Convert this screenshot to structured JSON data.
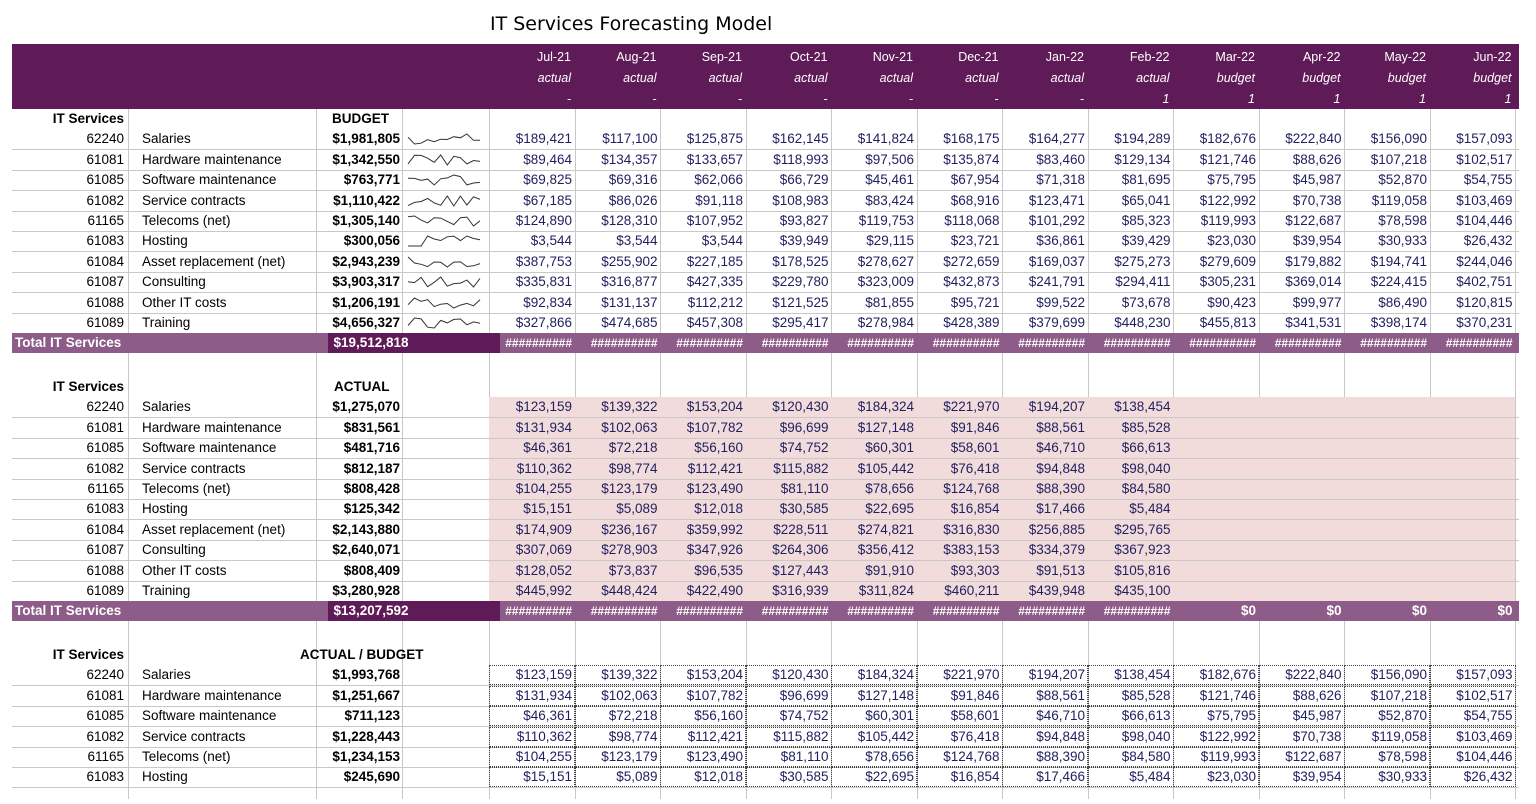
{
  "title": "IT Services Forecasting Model",
  "months": [
    "Jul-21",
    "Aug-21",
    "Sep-21",
    "Oct-21",
    "Nov-21",
    "Dec-21",
    "Jan-22",
    "Feb-22",
    "Mar-22",
    "Apr-22",
    "May-22",
    "Jun-22"
  ],
  "types": [
    "actual",
    "actual",
    "actual",
    "actual",
    "actual",
    "actual",
    "actual",
    "actual",
    "budget",
    "budget",
    "budget",
    "budget"
  ],
  "flags": [
    "-",
    "-",
    "-",
    "-",
    "-",
    "-",
    "-",
    "1",
    "1",
    "1",
    "1",
    "1"
  ],
  "hash": "##########",
  "section_label": "IT Services",
  "total_label": "Total IT Services",
  "budget": {
    "header": "BUDGET",
    "total": "$19,512,818",
    "rows": [
      {
        "code": "62240",
        "name": "Salaries",
        "total": "$1,981,805",
        "vals": [
          "$189,421",
          "$117,100",
          "$125,875",
          "$162,145",
          "$141,824",
          "$168,175",
          "$164,277",
          "$194,289",
          "$182,676",
          "$222,840",
          "$156,090",
          "$157,093"
        ]
      },
      {
        "code": "61081",
        "name": "Hardware maintenance",
        "total": "$1,342,550",
        "vals": [
          "$89,464",
          "$134,357",
          "$133,657",
          "$118,993",
          "$97,506",
          "$135,874",
          "$83,460",
          "$129,134",
          "$121,746",
          "$88,626",
          "$107,218",
          "$102,517"
        ]
      },
      {
        "code": "61085",
        "name": "Software maintenance",
        "total": "$763,771",
        "vals": [
          "$69,825",
          "$69,316",
          "$62,066",
          "$66,729",
          "$45,461",
          "$67,954",
          "$71,318",
          "$81,695",
          "$75,795",
          "$45,987",
          "$52,870",
          "$54,755"
        ]
      },
      {
        "code": "61082",
        "name": "Service contracts",
        "total": "$1,110,422",
        "vals": [
          "$67,185",
          "$86,026",
          "$91,118",
          "$108,983",
          "$83,424",
          "$68,916",
          "$123,471",
          "$65,041",
          "$122,992",
          "$70,738",
          "$119,058",
          "$103,469"
        ]
      },
      {
        "code": "61165",
        "name": "Telecoms (net)",
        "total": "$1,305,140",
        "vals": [
          "$124,890",
          "$128,310",
          "$107,952",
          "$93,827",
          "$119,753",
          "$118,068",
          "$101,292",
          "$85,323",
          "$119,993",
          "$122,687",
          "$78,598",
          "$104,446"
        ]
      },
      {
        "code": "61083",
        "name": "Hosting",
        "total": "$300,056",
        "vals": [
          "$3,544",
          "$3,544",
          "$3,544",
          "$39,949",
          "$29,115",
          "$23,721",
          "$36,861",
          "$39,429",
          "$23,030",
          "$39,954",
          "$30,933",
          "$26,432"
        ]
      },
      {
        "code": "61084",
        "name": "Asset replacement (net)",
        "total": "$2,943,239",
        "vals": [
          "$387,753",
          "$255,902",
          "$227,185",
          "$178,525",
          "$278,627",
          "$272,659",
          "$169,037",
          "$275,273",
          "$279,609",
          "$179,882",
          "$194,741",
          "$244,046"
        ]
      },
      {
        "code": "61087",
        "name": "Consulting",
        "total": "$3,903,317",
        "vals": [
          "$335,831",
          "$316,877",
          "$427,335",
          "$229,780",
          "$323,009",
          "$432,873",
          "$241,791",
          "$294,411",
          "$305,231",
          "$369,014",
          "$224,415",
          "$402,751"
        ]
      },
      {
        "code": "61088",
        "name": "Other IT costs",
        "total": "$1,206,191",
        "vals": [
          "$92,834",
          "$131,137",
          "$112,212",
          "$121,525",
          "$81,855",
          "$95,721",
          "$99,522",
          "$73,678",
          "$90,423",
          "$99,977",
          "$86,490",
          "$120,815"
        ]
      },
      {
        "code": "61089",
        "name": "Training",
        "total": "$4,656,327",
        "vals": [
          "$327,866",
          "$474,685",
          "$457,308",
          "$295,417",
          "$278,984",
          "$428,389",
          "$379,699",
          "$448,230",
          "$455,813",
          "$341,531",
          "$398,174",
          "$370,231"
        ]
      }
    ]
  },
  "actual": {
    "header": "ACTUAL",
    "total": "$13,207,592",
    "total_tail": [
      "$0",
      "$0",
      "$0",
      "$0"
    ],
    "rows": [
      {
        "code": "62240",
        "name": "Salaries",
        "total": "$1,275,070",
        "vals": [
          "$123,159",
          "$139,322",
          "$153,204",
          "$120,430",
          "$184,324",
          "$221,970",
          "$194,207",
          "$138,454"
        ]
      },
      {
        "code": "61081",
        "name": "Hardware maintenance",
        "total": "$831,561",
        "vals": [
          "$131,934",
          "$102,063",
          "$107,782",
          "$96,699",
          "$127,148",
          "$91,846",
          "$88,561",
          "$85,528"
        ]
      },
      {
        "code": "61085",
        "name": "Software maintenance",
        "total": "$481,716",
        "vals": [
          "$46,361",
          "$72,218",
          "$56,160",
          "$74,752",
          "$60,301",
          "$58,601",
          "$46,710",
          "$66,613"
        ]
      },
      {
        "code": "61082",
        "name": "Service contracts",
        "total": "$812,187",
        "vals": [
          "$110,362",
          "$98,774",
          "$112,421",
          "$115,882",
          "$105,442",
          "$76,418",
          "$94,848",
          "$98,040"
        ]
      },
      {
        "code": "61165",
        "name": "Telecoms (net)",
        "total": "$808,428",
        "vals": [
          "$104,255",
          "$123,179",
          "$123,490",
          "$81,110",
          "$78,656",
          "$124,768",
          "$88,390",
          "$84,580"
        ]
      },
      {
        "code": "61083",
        "name": "Hosting",
        "total": "$125,342",
        "vals": [
          "$15,151",
          "$5,089",
          "$12,018",
          "$30,585",
          "$22,695",
          "$16,854",
          "$17,466",
          "$5,484"
        ]
      },
      {
        "code": "61084",
        "name": "Asset replacement (net)",
        "total": "$2,143,880",
        "vals": [
          "$174,909",
          "$236,167",
          "$359,992",
          "$228,511",
          "$274,821",
          "$316,830",
          "$256,885",
          "$295,765"
        ]
      },
      {
        "code": "61087",
        "name": "Consulting",
        "total": "$2,640,071",
        "vals": [
          "$307,069",
          "$278,903",
          "$347,926",
          "$264,306",
          "$356,412",
          "$383,153",
          "$334,379",
          "$367,923"
        ]
      },
      {
        "code": "61088",
        "name": "Other IT costs",
        "total": "$808,409",
        "vals": [
          "$128,052",
          "$73,837",
          "$96,535",
          "$127,443",
          "$91,910",
          "$93,303",
          "$91,513",
          "$105,816"
        ]
      },
      {
        "code": "61089",
        "name": "Training",
        "total": "$3,280,928",
        "vals": [
          "$445,992",
          "$448,424",
          "$422,490",
          "$316,939",
          "$311,824",
          "$460,211",
          "$439,948",
          "$435,100"
        ]
      }
    ]
  },
  "combined": {
    "header": "ACTUAL / BUDGET",
    "rows": [
      {
        "code": "62240",
        "name": "Salaries",
        "total": "$1,993,768",
        "vals": [
          "$123,159",
          "$139,322",
          "$153,204",
          "$120,430",
          "$184,324",
          "$221,970",
          "$194,207",
          "$138,454",
          "$182,676",
          "$222,840",
          "$156,090",
          "$157,093"
        ]
      },
      {
        "code": "61081",
        "name": "Hardware maintenance",
        "total": "$1,251,667",
        "vals": [
          "$131,934",
          "$102,063",
          "$107,782",
          "$96,699",
          "$127,148",
          "$91,846",
          "$88,561",
          "$85,528",
          "$121,746",
          "$88,626",
          "$107,218",
          "$102,517"
        ]
      },
      {
        "code": "61085",
        "name": "Software maintenance",
        "total": "$711,123",
        "vals": [
          "$46,361",
          "$72,218",
          "$56,160",
          "$74,752",
          "$60,301",
          "$58,601",
          "$46,710",
          "$66,613",
          "$75,795",
          "$45,987",
          "$52,870",
          "$54,755"
        ]
      },
      {
        "code": "61082",
        "name": "Service contracts",
        "total": "$1,228,443",
        "vals": [
          "$110,362",
          "$98,774",
          "$112,421",
          "$115,882",
          "$105,442",
          "$76,418",
          "$94,848",
          "$98,040",
          "$122,992",
          "$70,738",
          "$119,058",
          "$103,469"
        ]
      },
      {
        "code": "61165",
        "name": "Telecoms (net)",
        "total": "$1,234,153",
        "vals": [
          "$104,255",
          "$123,179",
          "$123,490",
          "$81,110",
          "$78,656",
          "$124,768",
          "$88,390",
          "$84,580",
          "$119,993",
          "$122,687",
          "$78,598",
          "$104,446"
        ]
      },
      {
        "code": "61083",
        "name": "Hosting",
        "total": "$245,690",
        "vals": [
          "$15,151",
          "$5,089",
          "$12,018",
          "$30,585",
          "$22,695",
          "$16,854",
          "$17,466",
          "$5,484",
          "$23,030",
          "$39,954",
          "$30,933",
          "$26,432"
        ]
      }
    ]
  },
  "colors": {
    "header_bg": "#5f1b57",
    "total_bg": "#8e5c88",
    "actual_fill": "#f2dcdb",
    "value_text": "#1f1f5f"
  }
}
